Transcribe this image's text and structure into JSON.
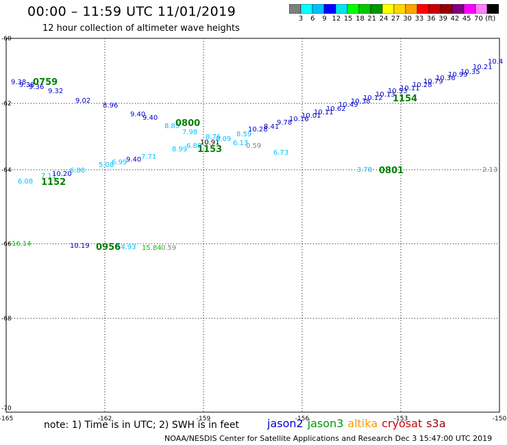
{
  "title": "00:00 – 11:59 UTC 11/01/2019",
  "subtitle": "12 hour collection of altimeter wave heights",
  "colorbar": {
    "colors": [
      "#7f7f7f",
      "#00ffff",
      "#00bfff",
      "#0000ff",
      "#00e5ee",
      "#00ff00",
      "#00c800",
      "#009600",
      "#ffff00",
      "#ffd700",
      "#ffa500",
      "#ff0000",
      "#c80000",
      "#960000",
      "#800080",
      "#ff00ff",
      "#ff80ff",
      "#000000"
    ],
    "labels": [
      "3",
      "6",
      "9",
      "12",
      "15",
      "18",
      "21",
      "24",
      "27",
      "30",
      "33",
      "36",
      "39",
      "42",
      "45",
      "70",
      "(ft)"
    ]
  },
  "axes": {
    "lon_labels": [
      "-165",
      "-162",
      "-159",
      "-156",
      "-153",
      "-150"
    ],
    "lat_labels": [
      "-60",
      "-62",
      "-64",
      "-66",
      "-68",
      "-70"
    ]
  },
  "passes": [
    {
      "text": "0759",
      "color": "#008000"
    },
    {
      "text": "0800",
      "color": "#008000"
    },
    {
      "text": "1153",
      "color": "#008000"
    },
    {
      "text": "1154",
      "color": "#008000"
    },
    {
      "text": "1152",
      "color": "#008000"
    },
    {
      "text": "0801",
      "color": "#008000"
    },
    {
      "text": "0956",
      "color": "#008000"
    }
  ],
  "observations": [
    {
      "text": "9.38",
      "color": "#0000cc"
    },
    {
      "text": "9.38",
      "color": "#0000cc"
    },
    {
      "text": "9.36",
      "color": "#0000cc"
    },
    {
      "text": "9.32",
      "color": "#0000cc"
    },
    {
      "text": "9.02",
      "color": "#0000cc"
    },
    {
      "text": "8.96",
      "color": "#0000cc"
    },
    {
      "text": "9.40",
      "color": "#0000cc"
    },
    {
      "text": "9.40",
      "color": "#0000cc"
    },
    {
      "text": "10.91",
      "color": "#000000"
    },
    {
      "text": "10.28",
      "color": "#0000cc"
    },
    {
      "text": "8.41",
      "color": "#0000cc"
    },
    {
      "text": "9.78",
      "color": "#0000cc"
    },
    {
      "text": "10.16",
      "color": "#0000cc"
    },
    {
      "text": "10.01",
      "color": "#0000cc"
    },
    {
      "text": "10.11",
      "color": "#0000cc"
    },
    {
      "text": "10.62",
      "color": "#0000cc"
    },
    {
      "text": "10.49",
      "color": "#0000cc"
    },
    {
      "text": "10.38",
      "color": "#0000cc"
    },
    {
      "text": "10.12",
      "color": "#0000cc"
    },
    {
      "text": "10.13",
      "color": "#0000cc"
    },
    {
      "text": "10.53",
      "color": "#0000cc"
    },
    {
      "text": "10.11",
      "color": "#0000cc"
    },
    {
      "text": "10.28",
      "color": "#0000cc"
    },
    {
      "text": "10.79",
      "color": "#0000cc"
    },
    {
      "text": "10.36",
      "color": "#0000cc"
    },
    {
      "text": "10.99",
      "color": "#0000cc"
    },
    {
      "text": "10.35",
      "color": "#0000cc"
    },
    {
      "text": "10.21",
      "color": "#0000cc"
    },
    {
      "text": "10.4",
      "color": "#0000cc"
    },
    {
      "text": "8.85",
      "color": "#00bfff"
    },
    {
      "text": "7.98",
      "color": "#00bfff"
    },
    {
      "text": "8.76",
      "color": "#00bfff"
    },
    {
      "text": "8.09",
      "color": "#00bfff"
    },
    {
      "text": "8.59",
      "color": "#00bfff"
    },
    {
      "text": "8.99",
      "color": "#00bfff"
    },
    {
      "text": "6.88",
      "color": "#00bfff"
    },
    {
      "text": "6.13",
      "color": "#00bfff"
    },
    {
      "text": "0.59",
      "color": "#808080"
    },
    {
      "text": "6.73",
      "color": "#00bfff"
    },
    {
      "text": "5.08",
      "color": "#00bfff"
    },
    {
      "text": "6.99",
      "color": "#00bfff"
    },
    {
      "text": "9.40",
      "color": "#0000cc"
    },
    {
      "text": "7.71",
      "color": "#00bfff"
    },
    {
      "text": "7.11",
      "color": "#00bfff"
    },
    {
      "text": "10.20",
      "color": "#0000cc"
    },
    {
      "text": "6.88",
      "color": "#00bfff"
    },
    {
      "text": "6.08",
      "color": "#00bfff"
    },
    {
      "text": "3.78",
      "color": "#00bfff"
    },
    {
      "text": "2.13",
      "color": "#808080"
    },
    {
      "text": "16.14",
      "color": "#00c800"
    },
    {
      "text": "10.19",
      "color": "#0000cc"
    },
    {
      "text": "14.93",
      "color": "#00bfff"
    },
    {
      "text": "15.84",
      "color": "#00c800"
    },
    {
      "text": "0.59",
      "color": "#808080"
    }
  ],
  "note": "note: 1) Time is in UTC; 2) SWH is in feet",
  "legend": [
    {
      "text": "jason2",
      "color": "#0000cc"
    },
    {
      "text": "jason3",
      "color": "#009600"
    },
    {
      "text": "altika",
      "color": "#ff9900"
    },
    {
      "text": "cryosat",
      "color": "#cc0000"
    },
    {
      "text": "s3a",
      "color": "#990000"
    }
  ],
  "credit": "NOAA/NESDIS Center for Satellite Applications and Research    Dec  3 15:47:00 UTC 2019"
}
